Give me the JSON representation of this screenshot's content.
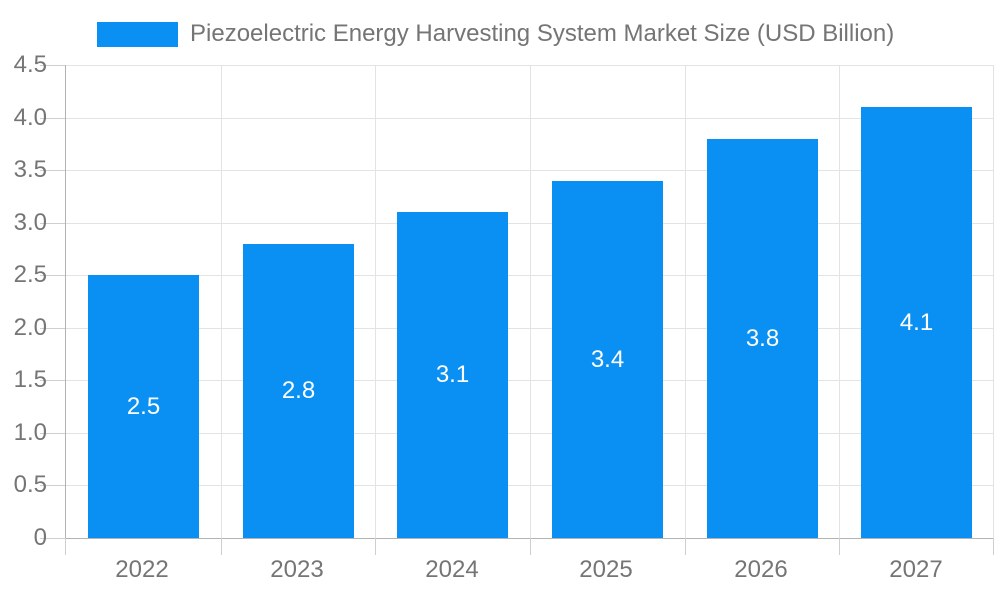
{
  "legend": {
    "label": "Piezoelectric Energy Harvesting System Market Size (USD Billion)"
  },
  "colors": {
    "bar": "#0a90f2",
    "bar_label": "#ffffff",
    "axis_line": "#b3b3b3",
    "gridline": "#e3e3e3",
    "tick": "#cfcfcf",
    "text": "#757575",
    "background": "#ffffff"
  },
  "chart_data": {
    "type": "bar",
    "title": "Piezoelectric Energy Harvesting System Market Size (USD Billion)",
    "categories": [
      "2022",
      "2023",
      "2024",
      "2025",
      "2026",
      "2027"
    ],
    "values": [
      2.5,
      2.8,
      3.1,
      3.4,
      3.8,
      4.1
    ],
    "bar_labels": [
      "2.5",
      "2.8",
      "3.1",
      "3.4",
      "3.8",
      "4.1"
    ],
    "xlabel": "",
    "ylabel": "",
    "ylim": [
      0,
      4.5
    ],
    "yticks": [
      {
        "value": 0,
        "label": "0"
      },
      {
        "value": 0.5,
        "label": "0.5"
      },
      {
        "value": 1.0,
        "label": "1.0"
      },
      {
        "value": 1.5,
        "label": "1.5"
      },
      {
        "value": 2.0,
        "label": "2.0"
      },
      {
        "value": 2.5,
        "label": "2.5"
      },
      {
        "value": 3.0,
        "label": "3.0"
      },
      {
        "value": 3.5,
        "label": "3.5"
      },
      {
        "value": 4.0,
        "label": "4.0"
      },
      {
        "value": 4.5,
        "label": "4.5"
      }
    ],
    "grid": true,
    "legend_position": "top",
    "value_label_position": "center-inside"
  }
}
